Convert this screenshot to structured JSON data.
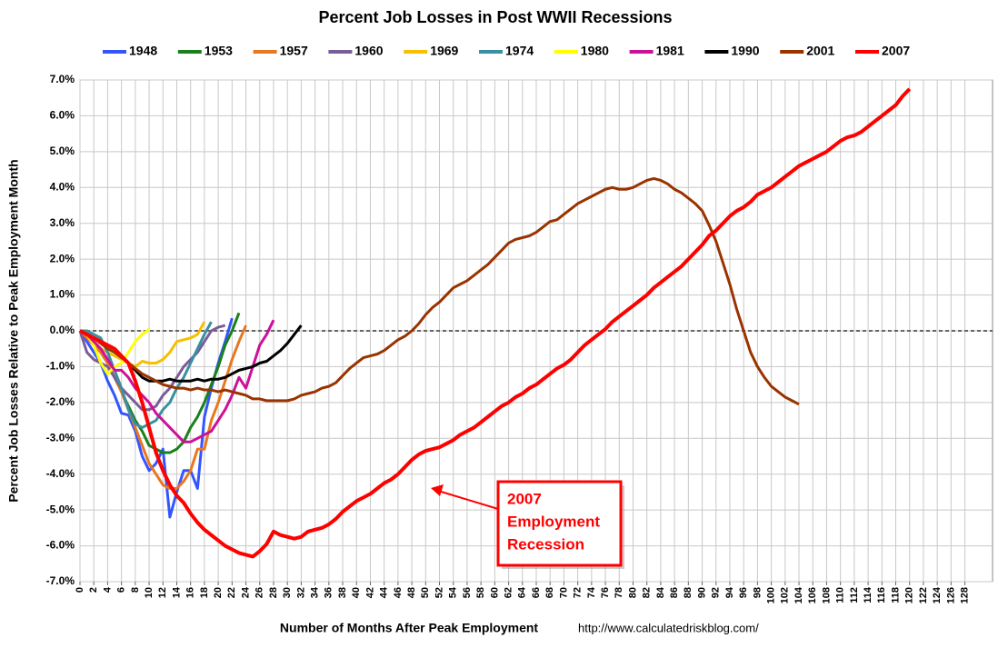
{
  "chart_data": {
    "type": "line",
    "title": "Percent Job Losses in Post WWII Recessions",
    "xlabel": "Number of Months After Peak Employment",
    "ylabel": "Percent Job Losses Relative to Peak Employment Month",
    "source": "http://www.calculatedriskblog.com/",
    "annotation": [
      "2007",
      "Employment",
      "Recession"
    ],
    "xlim": [
      0,
      132
    ],
    "xticks": [
      0,
      2,
      4,
      6,
      8,
      10,
      12,
      14,
      16,
      18,
      20,
      22,
      24,
      26,
      28,
      30,
      32,
      34,
      36,
      38,
      40,
      42,
      44,
      46,
      48,
      50,
      52,
      54,
      56,
      58,
      60,
      62,
      64,
      66,
      68,
      70,
      72,
      74,
      76,
      78,
      80,
      82,
      84,
      86,
      88,
      90,
      92,
      94,
      96,
      98,
      100,
      102,
      104,
      106,
      108,
      110,
      112,
      114,
      116,
      118,
      120,
      122,
      124,
      126,
      128
    ],
    "ylim": [
      -7,
      7
    ],
    "yticks": [
      {
        "value": -7,
        "label": "-7.0%"
      },
      {
        "value": -6,
        "label": "-6.0%"
      },
      {
        "value": -5,
        "label": "-5.0%"
      },
      {
        "value": -4,
        "label": "-4.0%"
      },
      {
        "value": -3,
        "label": "-3.0%"
      },
      {
        "value": -2,
        "label": "-2.0%"
      },
      {
        "value": -1,
        "label": "-1.0%"
      },
      {
        "value": 0,
        "label": "0.0%"
      },
      {
        "value": 1,
        "label": "1.0%"
      },
      {
        "value": 2,
        "label": "2.0%"
      },
      {
        "value": 3,
        "label": "3.0%"
      },
      {
        "value": 4,
        "label": "4.0%"
      },
      {
        "value": 5,
        "label": "5.0%"
      },
      {
        "value": 6,
        "label": "6.0%"
      },
      {
        "value": 7,
        "label": "7.0%"
      }
    ],
    "grid": true,
    "legend": "top",
    "series": [
      {
        "name": "1948",
        "color": "#3355ff",
        "x": [
          0,
          1,
          2,
          3,
          4,
          5,
          6,
          7,
          8,
          9,
          10,
          11,
          12,
          13,
          14,
          15,
          16,
          17,
          18,
          19,
          20,
          21,
          22
        ],
        "values": [
          0,
          -0.3,
          -0.6,
          -0.9,
          -1.4,
          -1.8,
          -2.3,
          -2.35,
          -2.8,
          -3.5,
          -3.9,
          -3.7,
          -3.3,
          -5.2,
          -4.5,
          -3.9,
          -3.9,
          -4.4,
          -2.4,
          -1.6,
          -0.9,
          -0.3,
          0.35
        ]
      },
      {
        "name": "1953",
        "color": "#1a801a",
        "x": [
          0,
          1,
          2,
          3,
          4,
          5,
          6,
          7,
          8,
          9,
          10,
          11,
          12,
          13,
          14,
          15,
          16,
          17,
          18,
          19,
          20,
          21,
          22,
          23
        ],
        "values": [
          0,
          -0.1,
          -0.3,
          -0.6,
          -0.9,
          -1.3,
          -1.7,
          -2.1,
          -2.5,
          -2.8,
          -3.2,
          -3.3,
          -3.4,
          -3.4,
          -3.3,
          -3.1,
          -2.7,
          -2.4,
          -2.0,
          -1.5,
          -1.0,
          -0.4,
          0.0,
          0.5
        ]
      },
      {
        "name": "1957",
        "color": "#e87722",
        "x": [
          0,
          1,
          2,
          3,
          4,
          5,
          6,
          7,
          8,
          9,
          10,
          11,
          12,
          13,
          14,
          15,
          16,
          17,
          18,
          19,
          20,
          21,
          22,
          23,
          24
        ],
        "values": [
          0,
          -0.2,
          -0.4,
          -0.6,
          -0.9,
          -1.3,
          -1.7,
          -2.2,
          -2.7,
          -3.2,
          -3.7,
          -4.0,
          -4.3,
          -4.4,
          -4.4,
          -4.2,
          -3.9,
          -3.3,
          -3.3,
          -2.5,
          -2.0,
          -1.4,
          -0.8,
          -0.3,
          0.15
        ]
      },
      {
        "name": "1960",
        "color": "#7a5c9a",
        "x": [
          0,
          1,
          2,
          3,
          4,
          5,
          6,
          7,
          8,
          9,
          10,
          11,
          12,
          13,
          14,
          15,
          16,
          17,
          18,
          19,
          20,
          21
        ],
        "values": [
          0,
          -0.6,
          -0.8,
          -0.9,
          -1.0,
          -1.3,
          -1.6,
          -1.8,
          -2.0,
          -2.2,
          -2.2,
          -2.1,
          -1.8,
          -1.6,
          -1.3,
          -1.0,
          -0.8,
          -0.6,
          -0.3,
          0.0,
          0.1,
          0.15
        ]
      },
      {
        "name": "1969",
        "color": "#f5c000",
        "x": [
          0,
          1,
          2,
          3,
          4,
          5,
          6,
          7,
          8,
          9,
          10,
          11,
          12,
          13,
          14,
          15,
          16,
          17,
          18
        ],
        "values": [
          0,
          -0.1,
          -0.3,
          -0.5,
          -0.6,
          -0.7,
          -0.8,
          -0.9,
          -1.0,
          -0.85,
          -0.9,
          -0.9,
          -0.8,
          -0.6,
          -0.3,
          -0.25,
          -0.2,
          -0.1,
          0.25
        ]
      },
      {
        "name": "1974",
        "color": "#3a90a0",
        "x": [
          0,
          1,
          2,
          3,
          4,
          5,
          6,
          7,
          8,
          9,
          10,
          11,
          12,
          13,
          14,
          15,
          16,
          17,
          18,
          19
        ],
        "values": [
          0,
          0,
          -0.1,
          -0.2,
          -0.6,
          -1.1,
          -1.6,
          -2.2,
          -2.6,
          -2.7,
          -2.6,
          -2.5,
          -2.2,
          -2.0,
          -1.6,
          -1.3,
          -0.9,
          -0.5,
          -0.1,
          0.25
        ]
      },
      {
        "name": "1980",
        "color": "#ffff00",
        "x": [
          0,
          1,
          2,
          3,
          4,
          5,
          6,
          7,
          8,
          9,
          10
        ],
        "values": [
          0,
          -0.1,
          -0.4,
          -0.9,
          -1.2,
          -1.0,
          -0.9,
          -0.6,
          -0.3,
          -0.1,
          0.05
        ]
      },
      {
        "name": "1981",
        "color": "#cc1199",
        "x": [
          0,
          1,
          2,
          3,
          4,
          5,
          6,
          7,
          8,
          9,
          10,
          11,
          12,
          13,
          14,
          15,
          16,
          17,
          18,
          19,
          20,
          21,
          22,
          23,
          24,
          25,
          26,
          27,
          28
        ],
        "values": [
          0,
          -0.1,
          -0.3,
          -0.5,
          -0.8,
          -1.1,
          -1.1,
          -1.3,
          -1.6,
          -1.8,
          -2.0,
          -2.3,
          -2.5,
          -2.7,
          -2.9,
          -3.1,
          -3.1,
          -3.0,
          -2.9,
          -2.8,
          -2.5,
          -2.2,
          -1.8,
          -1.3,
          -1.6,
          -1.0,
          -0.4,
          -0.1,
          0.3
        ]
      },
      {
        "name": "1990",
        "color": "#000000",
        "x": [
          0,
          1,
          2,
          3,
          4,
          5,
          6,
          7,
          8,
          9,
          10,
          11,
          12,
          13,
          14,
          15,
          16,
          17,
          18,
          19,
          20,
          21,
          22,
          23,
          24,
          25,
          26,
          27,
          28,
          29,
          30,
          31,
          32
        ],
        "values": [
          0,
          -0.1,
          -0.2,
          -0.3,
          -0.4,
          -0.5,
          -0.7,
          -0.9,
          -1.1,
          -1.3,
          -1.4,
          -1.4,
          -1.4,
          -1.35,
          -1.4,
          -1.4,
          -1.4,
          -1.35,
          -1.4,
          -1.35,
          -1.35,
          -1.3,
          -1.2,
          -1.1,
          -1.05,
          -1.0,
          -0.9,
          -0.85,
          -0.7,
          -0.55,
          -0.35,
          -0.1,
          0.15
        ]
      },
      {
        "name": "2001",
        "color": "#993300",
        "x": [
          0,
          1,
          2,
          3,
          4,
          5,
          6,
          7,
          8,
          9,
          10,
          11,
          12,
          13,
          14,
          15,
          16,
          17,
          18,
          19,
          20,
          21,
          22,
          23,
          24,
          25,
          26,
          27,
          28,
          29,
          30,
          31,
          32,
          33,
          34,
          35,
          36,
          37,
          38,
          39,
          40,
          41,
          42,
          43,
          44,
          45,
          46,
          47,
          48,
          49,
          50,
          51,
          52,
          53,
          54,
          55,
          56,
          57,
          58,
          59,
          60,
          61,
          62,
          63,
          64,
          65,
          66,
          67,
          68,
          69,
          70,
          71,
          72,
          73,
          74,
          75,
          76,
          77,
          78,
          79,
          80,
          81,
          82,
          83,
          84,
          85,
          86,
          87,
          88,
          89,
          90,
          91,
          92,
          93,
          94,
          95,
          96,
          97,
          98,
          99,
          100,
          101,
          102,
          103,
          104
        ],
        "values": [
          0,
          -0.1,
          -0.2,
          -0.35,
          -0.5,
          -0.6,
          -0.75,
          -0.9,
          -1.05,
          -1.2,
          -1.3,
          -1.4,
          -1.5,
          -1.55,
          -1.6,
          -1.6,
          -1.65,
          -1.6,
          -1.65,
          -1.65,
          -1.7,
          -1.65,
          -1.7,
          -1.75,
          -1.8,
          -1.9,
          -1.9,
          -1.95,
          -1.95,
          -1.95,
          -1.95,
          -1.9,
          -1.8,
          -1.75,
          -1.7,
          -1.6,
          -1.55,
          -1.45,
          -1.25,
          -1.05,
          -0.9,
          -0.75,
          -0.7,
          -0.65,
          -0.55,
          -0.4,
          -0.25,
          -0.15,
          0.0,
          0.2,
          0.45,
          0.65,
          0.8,
          1.0,
          1.2,
          1.3,
          1.4,
          1.55,
          1.7,
          1.85,
          2.05,
          2.25,
          2.45,
          2.55,
          2.6,
          2.65,
          2.75,
          2.9,
          3.05,
          3.1,
          3.25,
          3.4,
          3.55,
          3.65,
          3.75,
          3.85,
          3.95,
          4.0,
          3.95,
          3.95,
          4.0,
          4.1,
          4.2,
          4.25,
          4.2,
          4.1,
          3.95,
          3.85,
          3.7,
          3.55,
          3.35,
          2.95,
          2.5,
          1.9,
          1.3,
          0.6,
          0.0,
          -0.6,
          -1.0,
          -1.3,
          -1.55,
          -1.7,
          -1.85,
          -1.95,
          -2.05
        ]
      },
      {
        "name": "2007",
        "color": "#ff0000",
        "x": [
          0,
          1,
          2,
          3,
          4,
          5,
          6,
          7,
          8,
          9,
          10,
          11,
          12,
          13,
          14,
          15,
          16,
          17,
          18,
          19,
          20,
          21,
          22,
          23,
          24,
          25,
          26,
          27,
          28,
          29,
          30,
          31,
          32,
          33,
          34,
          35,
          36,
          37,
          38,
          39,
          40,
          41,
          42,
          43,
          44,
          45,
          46,
          47,
          48,
          49,
          50,
          51,
          52,
          53,
          54,
          55,
          56,
          57,
          58,
          59,
          60,
          61,
          62,
          63,
          64,
          65,
          66,
          67,
          68,
          69,
          70,
          71,
          72,
          73,
          74,
          75,
          76,
          77,
          78,
          79,
          80,
          81,
          82,
          83,
          84,
          85,
          86,
          87,
          88,
          89,
          90,
          91,
          92,
          93,
          94,
          95,
          96,
          97,
          98,
          99,
          100,
          101,
          102,
          103,
          104,
          105,
          106,
          107,
          108,
          109,
          110,
          111,
          112,
          113,
          114,
          115,
          116,
          117,
          118,
          119,
          120
        ],
        "values": [
          0,
          -0.1,
          -0.2,
          -0.3,
          -0.4,
          -0.5,
          -0.7,
          -0.9,
          -1.4,
          -2.0,
          -2.7,
          -3.4,
          -3.9,
          -4.3,
          -4.6,
          -4.8,
          -5.1,
          -5.35,
          -5.55,
          -5.7,
          -5.85,
          -6.0,
          -6.1,
          -6.2,
          -6.25,
          -6.3,
          -6.15,
          -5.95,
          -5.6,
          -5.7,
          -5.75,
          -5.8,
          -5.75,
          -5.6,
          -5.55,
          -5.5,
          -5.4,
          -5.25,
          -5.05,
          -4.9,
          -4.75,
          -4.65,
          -4.55,
          -4.4,
          -4.25,
          -4.15,
          -4.0,
          -3.8,
          -3.6,
          -3.45,
          -3.35,
          -3.3,
          -3.25,
          -3.15,
          -3.05,
          -2.9,
          -2.8,
          -2.7,
          -2.55,
          -2.4,
          -2.25,
          -2.1,
          -2.0,
          -1.85,
          -1.75,
          -1.6,
          -1.5,
          -1.35,
          -1.2,
          -1.05,
          -0.95,
          -0.8,
          -0.6,
          -0.4,
          -0.25,
          -0.1,
          0.05,
          0.25,
          0.4,
          0.55,
          0.7,
          0.85,
          1.0,
          1.2,
          1.35,
          1.5,
          1.65,
          1.8,
          2.0,
          2.2,
          2.4,
          2.65,
          2.8,
          3.0,
          3.2,
          3.35,
          3.45,
          3.6,
          3.8,
          3.9,
          4.0,
          4.15,
          4.3,
          4.45,
          4.6,
          4.7,
          4.8,
          4.9,
          5.0,
          5.15,
          5.3,
          5.4,
          5.45,
          5.55,
          5.7,
          5.85,
          6.0,
          6.15,
          6.3,
          6.55,
          6.75
        ]
      }
    ]
  }
}
